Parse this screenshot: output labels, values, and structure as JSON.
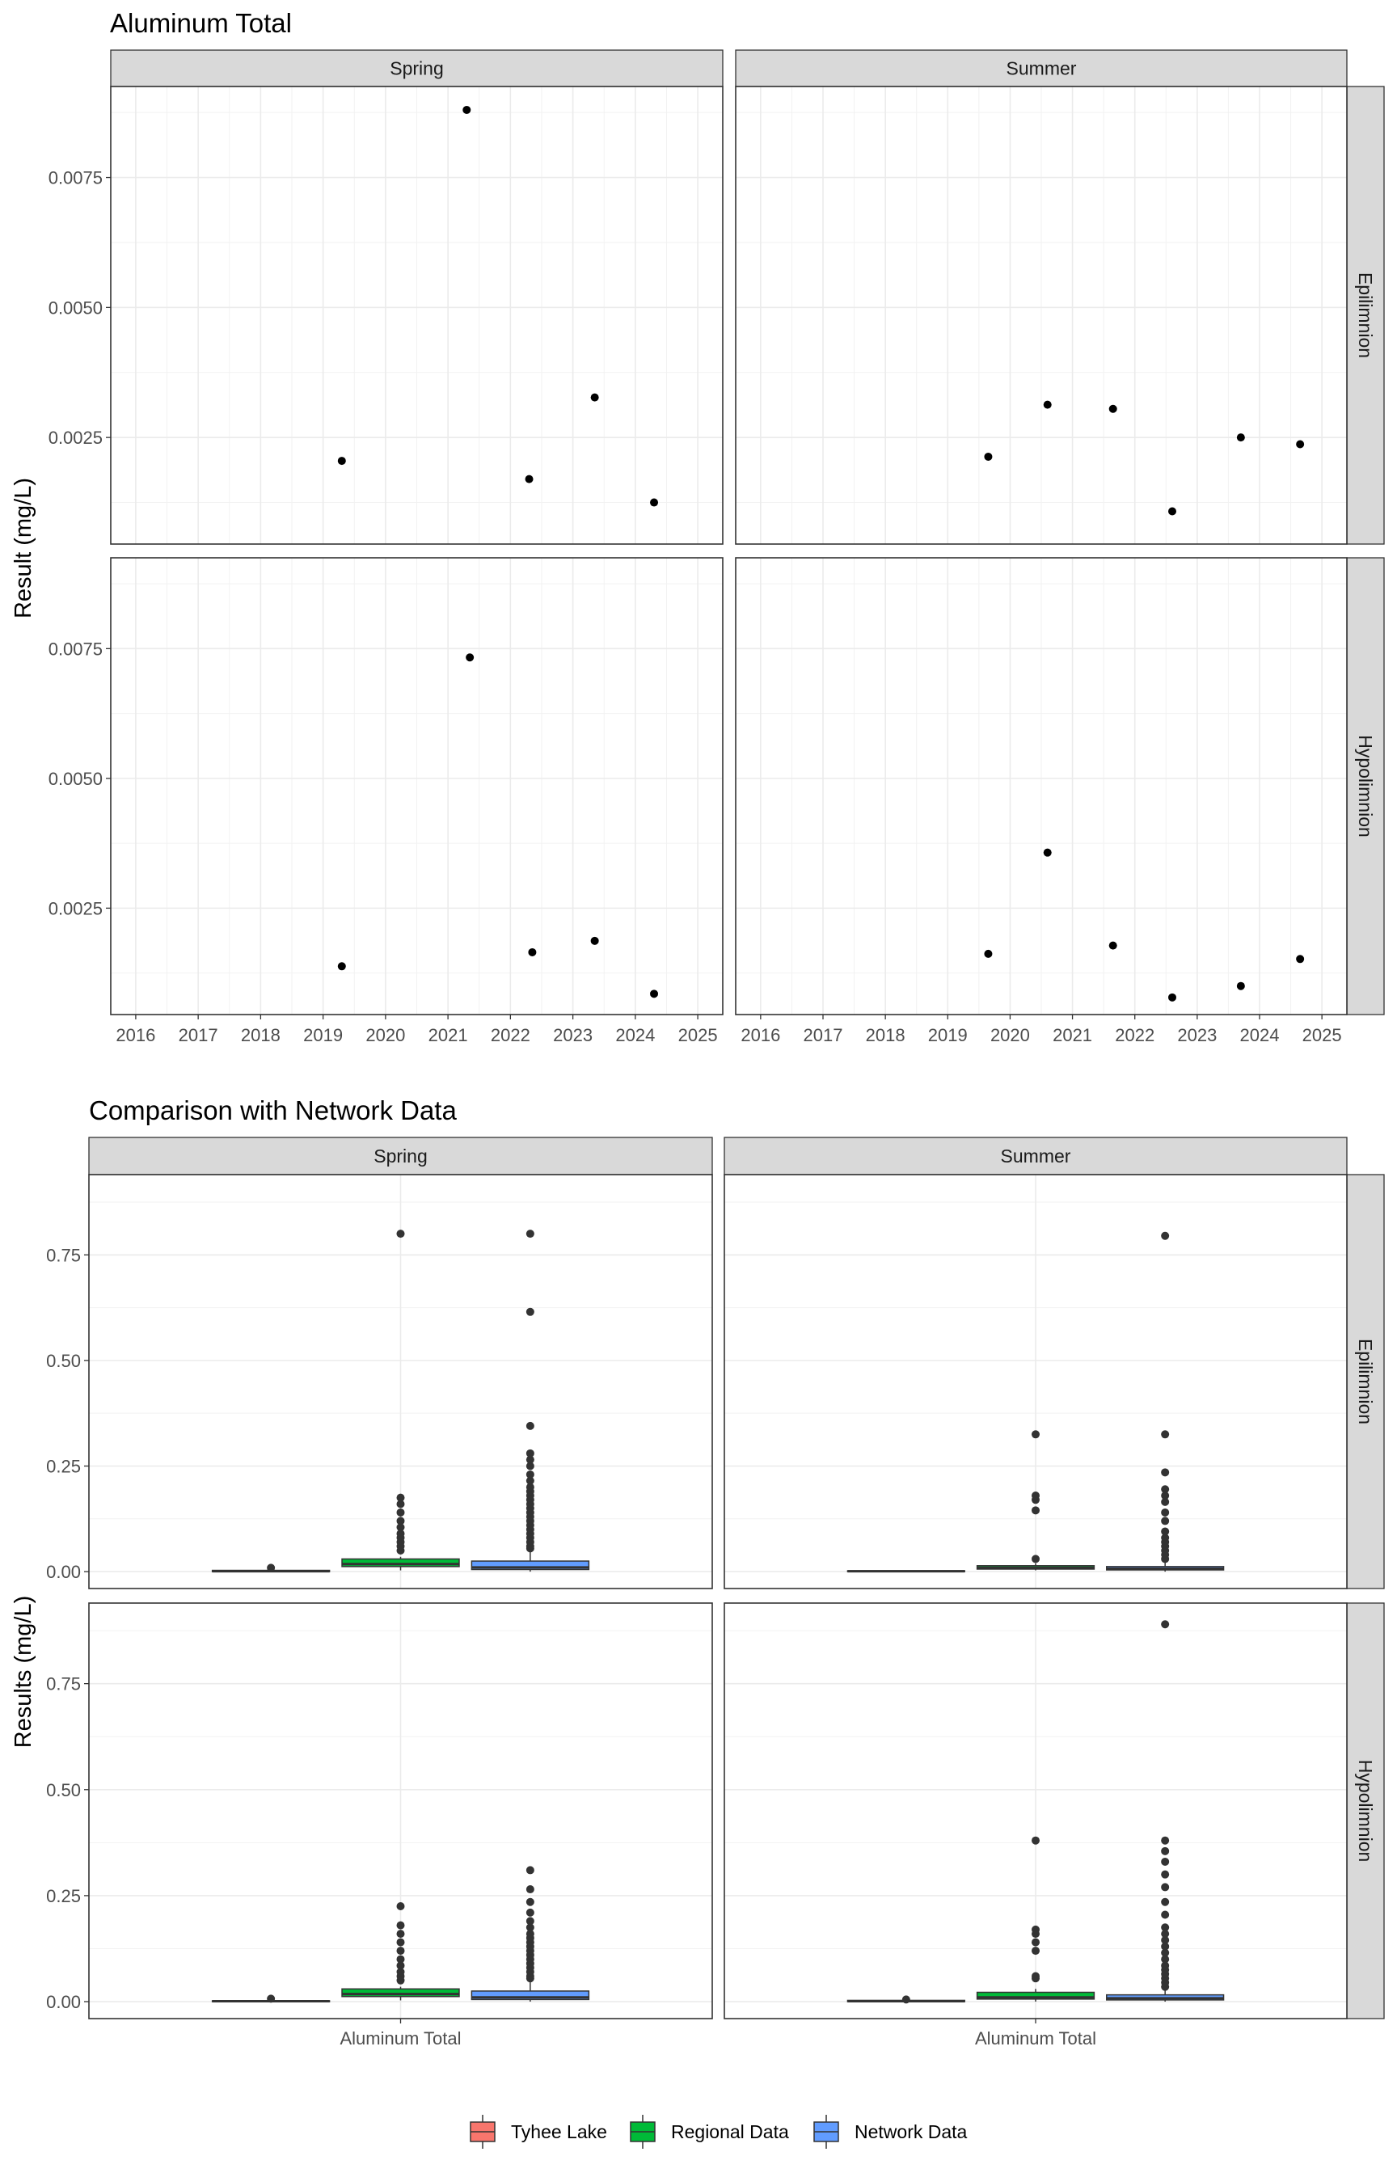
{
  "chart_data": [
    {
      "type": "scatter",
      "title": "Aluminum Total",
      "ylabel": "Result (mg/L)",
      "xlabel": "",
      "xlim": [
        2015.6,
        2025.4
      ],
      "ylim": [
        0.00045,
        0.00925
      ],
      "x_ticks": [
        "2016",
        "2017",
        "2018",
        "2019",
        "2020",
        "2021",
        "2022",
        "2023",
        "2024",
        "2025"
      ],
      "y_ticks": [
        "0.0025",
        "0.0050",
        "0.0075"
      ],
      "columns": [
        "Spring",
        "Summer"
      ],
      "rows": [
        "Epilimnion",
        "Hypolimnion"
      ],
      "grid": true,
      "panels": [
        {
          "season": "Spring",
          "layer": "Epilimnion",
          "points": [
            {
              "x": 2019.3,
              "y": 0.00205
            },
            {
              "x": 2021.3,
              "y": 0.0088
            },
            {
              "x": 2022.3,
              "y": 0.0017
            },
            {
              "x": 2023.35,
              "y": 0.00327
            },
            {
              "x": 2024.3,
              "y": 0.00125
            }
          ]
        },
        {
          "season": "Summer",
          "layer": "Epilimnion",
          "points": [
            {
              "x": 2019.65,
              "y": 0.00213
            },
            {
              "x": 2020.6,
              "y": 0.00313
            },
            {
              "x": 2021.65,
              "y": 0.00305
            },
            {
              "x": 2022.6,
              "y": 0.00108
            },
            {
              "x": 2023.7,
              "y": 0.0025
            },
            {
              "x": 2024.65,
              "y": 0.00237
            }
          ]
        },
        {
          "season": "Spring",
          "layer": "Hypolimnion",
          "points": [
            {
              "x": 2019.3,
              "y": 0.00138
            },
            {
              "x": 2021.35,
              "y": 0.00733
            },
            {
              "x": 2022.35,
              "y": 0.00165
            },
            {
              "x": 2023.35,
              "y": 0.00187
            },
            {
              "x": 2024.3,
              "y": 0.00085
            }
          ]
        },
        {
          "season": "Summer",
          "layer": "Hypolimnion",
          "points": [
            {
              "x": 2019.65,
              "y": 0.00162
            },
            {
              "x": 2020.6,
              "y": 0.00357
            },
            {
              "x": 2021.65,
              "y": 0.00178
            },
            {
              "x": 2022.6,
              "y": 0.00078
            },
            {
              "x": 2023.7,
              "y": 0.001
            },
            {
              "x": 2024.65,
              "y": 0.00152
            }
          ]
        }
      ]
    },
    {
      "type": "box",
      "title": "Comparison with Network Data",
      "ylabel": "Results (mg/L)",
      "xlabel": "",
      "category": "Aluminum Total",
      "ylim": [
        -0.04,
        0.94
      ],
      "y_ticks": [
        "0.00",
        "0.25",
        "0.50",
        "0.75"
      ],
      "columns": [
        "Spring",
        "Summer"
      ],
      "rows": [
        "Epilimnion",
        "Hypolimnion"
      ],
      "grid": true,
      "legend": {
        "position": "bottom",
        "entries": [
          {
            "label": "Tyhee Lake",
            "color": "#F8766D"
          },
          {
            "label": "Regional Data",
            "color": "#00BA38"
          },
          {
            "label": "Network Data",
            "color": "#619CFF"
          }
        ]
      },
      "panels": [
        {
          "season": "Spring",
          "layer": "Epilimnion",
          "groups": [
            {
              "name": "Tyhee Lake",
              "q1": 0.0,
              "median": 0.001,
              "q3": 0.003,
              "whisker_low": 0.0,
              "whisker_high": 0.005,
              "outliers": [
                0.009
              ]
            },
            {
              "name": "Regional Data",
              "q1": 0.012,
              "median": 0.018,
              "q3": 0.03,
              "whisker_low": 0.003,
              "whisker_high": 0.035,
              "outliers": [
                0.05,
                0.06,
                0.07,
                0.08,
                0.09,
                0.105,
                0.12,
                0.14,
                0.16,
                0.175,
                0.8
              ]
            },
            {
              "name": "Network Data",
              "q1": 0.005,
              "median": 0.01,
              "q3": 0.025,
              "whisker_low": 0.0,
              "whisker_high": 0.05,
              "outliers": [
                0.055,
                0.06,
                0.07,
                0.08,
                0.09,
                0.1,
                0.11,
                0.12,
                0.13,
                0.14,
                0.15,
                0.16,
                0.17,
                0.18,
                0.19,
                0.2,
                0.215,
                0.23,
                0.25,
                0.265,
                0.28,
                0.345,
                0.615,
                0.8
              ]
            }
          ]
        },
        {
          "season": "Summer",
          "layer": "Epilimnion",
          "groups": [
            {
              "name": "Tyhee Lake",
              "q1": 0.0,
              "median": 0.001,
              "q3": 0.002,
              "whisker_low": 0.0,
              "whisker_high": 0.003,
              "outliers": []
            },
            {
              "name": "Regional Data",
              "q1": 0.006,
              "median": 0.009,
              "q3": 0.014,
              "whisker_low": 0.003,
              "whisker_high": 0.02,
              "outliers": [
                0.03,
                0.145,
                0.17,
                0.18,
                0.325
              ]
            },
            {
              "name": "Network Data",
              "q1": 0.004,
              "median": 0.007,
              "q3": 0.012,
              "whisker_low": 0.0,
              "whisker_high": 0.025,
              "outliers": [
                0.03,
                0.04,
                0.05,
                0.06,
                0.07,
                0.08,
                0.095,
                0.12,
                0.14,
                0.165,
                0.18,
                0.195,
                0.235,
                0.325,
                0.795
              ]
            }
          ]
        },
        {
          "season": "Spring",
          "layer": "Hypolimnion",
          "groups": [
            {
              "name": "Tyhee Lake",
              "q1": 0.0,
              "median": 0.001,
              "q3": 0.002,
              "whisker_low": 0.0,
              "whisker_high": 0.004,
              "outliers": [
                0.007
              ]
            },
            {
              "name": "Regional Data",
              "q1": 0.012,
              "median": 0.018,
              "q3": 0.03,
              "whisker_low": 0.003,
              "whisker_high": 0.035,
              "outliers": [
                0.05,
                0.06,
                0.07,
                0.085,
                0.1,
                0.12,
                0.14,
                0.16,
                0.18,
                0.225
              ]
            },
            {
              "name": "Network Data",
              "q1": 0.005,
              "median": 0.01,
              "q3": 0.025,
              "whisker_low": 0.0,
              "whisker_high": 0.05,
              "outliers": [
                0.055,
                0.06,
                0.07,
                0.08,
                0.09,
                0.1,
                0.11,
                0.12,
                0.13,
                0.14,
                0.15,
                0.16,
                0.175,
                0.19,
                0.21,
                0.235,
                0.265,
                0.31
              ]
            }
          ]
        },
        {
          "season": "Summer",
          "layer": "Hypolimnion",
          "groups": [
            {
              "name": "Tyhee Lake",
              "q1": 0.0,
              "median": 0.001,
              "q3": 0.003,
              "whisker_low": 0.0,
              "whisker_high": 0.004,
              "outliers": [
                0.005
              ]
            },
            {
              "name": "Regional Data",
              "q1": 0.006,
              "median": 0.01,
              "q3": 0.022,
              "whisker_low": 0.0,
              "whisker_high": 0.03,
              "outliers": [
                0.055,
                0.06,
                0.12,
                0.14,
                0.16,
                0.17,
                0.38
              ]
            },
            {
              "name": "Network Data",
              "q1": 0.004,
              "median": 0.008,
              "q3": 0.016,
              "whisker_low": 0.0,
              "whisker_high": 0.03,
              "outliers": [
                0.035,
                0.045,
                0.055,
                0.065,
                0.075,
                0.085,
                0.1,
                0.115,
                0.13,
                0.145,
                0.16,
                0.175,
                0.205,
                0.235,
                0.27,
                0.3,
                0.33,
                0.355,
                0.38,
                0.89
              ]
            }
          ]
        }
      ]
    }
  ]
}
